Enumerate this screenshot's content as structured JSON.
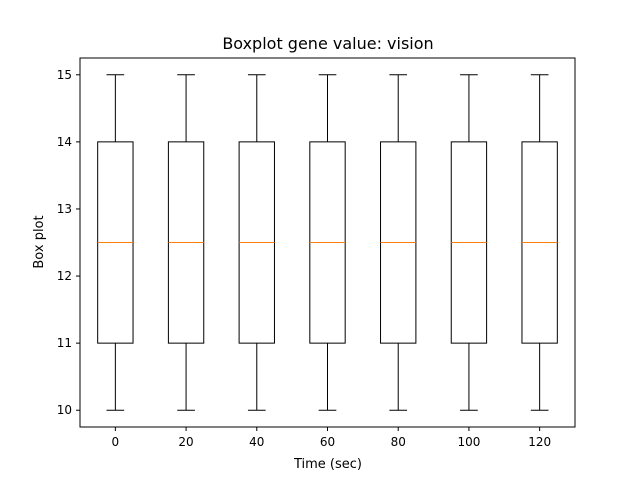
{
  "chart_data": {
    "type": "box",
    "title": "Boxplot gene value: vision",
    "xlabel": "Time (sec)",
    "ylabel": "Box plot",
    "categories": [
      "0",
      "20",
      "40",
      "60",
      "80",
      "100",
      "120"
    ],
    "boxes": [
      {
        "label": "0",
        "whisker_low": 10,
        "q1": 11,
        "median": 12.5,
        "q3": 14,
        "whisker_high": 15
      },
      {
        "label": "20",
        "whisker_low": 10,
        "q1": 11,
        "median": 12.5,
        "q3": 14,
        "whisker_high": 15
      },
      {
        "label": "40",
        "whisker_low": 10,
        "q1": 11,
        "median": 12.5,
        "q3": 14,
        "whisker_high": 15
      },
      {
        "label": "60",
        "whisker_low": 10,
        "q1": 11,
        "median": 12.5,
        "q3": 14,
        "whisker_high": 15
      },
      {
        "label": "80",
        "whisker_low": 10,
        "q1": 11,
        "median": 12.5,
        "q3": 14,
        "whisker_high": 15
      },
      {
        "label": "100",
        "whisker_low": 10,
        "q1": 11,
        "median": 12.5,
        "q3": 14,
        "whisker_high": 15
      },
      {
        "label": "120",
        "whisker_low": 10,
        "q1": 11,
        "median": 12.5,
        "q3": 14,
        "whisker_high": 15
      }
    ],
    "yticks": [
      10,
      11,
      12,
      13,
      14,
      15
    ],
    "ylim": [
      9.75,
      15.25
    ],
    "grid": false,
    "colors": {
      "box": "#000000",
      "median": "#ff7f0e",
      "whisker": "#000000"
    }
  }
}
